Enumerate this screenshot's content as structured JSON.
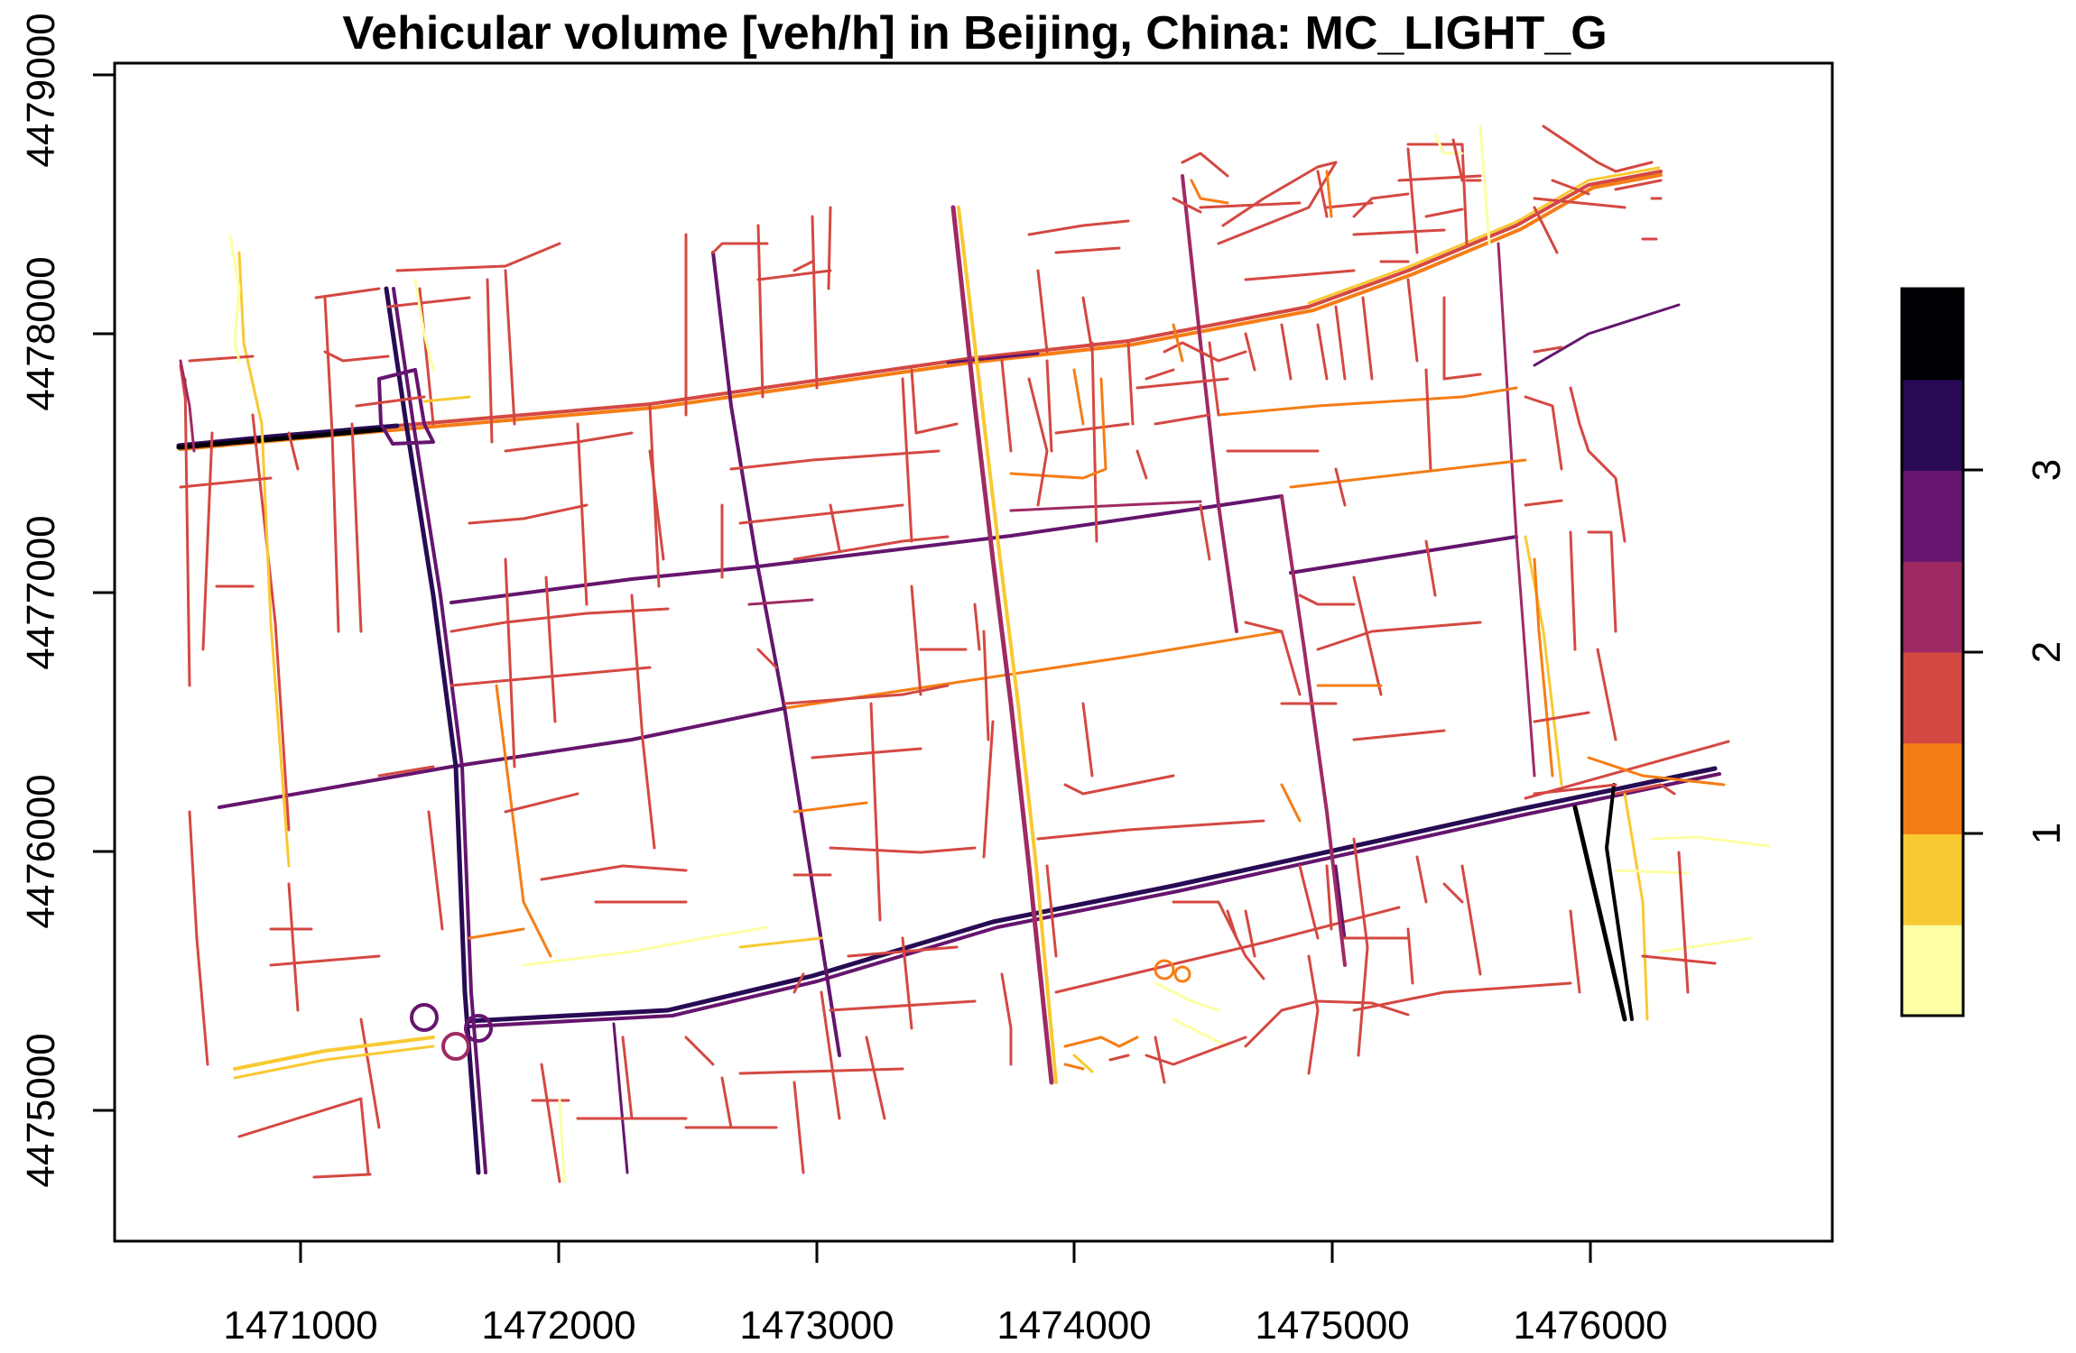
{
  "title": "Vehicular volume [veh/h] in Beijing, China: MC_LIGHT_G",
  "x_ticks": [
    "1471000",
    "1472000",
    "1473000",
    "1474000",
    "1475000",
    "1476000"
  ],
  "y_ticks": [
    "4475000",
    "4476000",
    "4477000",
    "4478000",
    "4479000"
  ],
  "legend_ticks": [
    "1",
    "2",
    "3"
  ],
  "colors": {
    "c1": "#FCFFA4",
    "c2": "#F8C932",
    "c3": "#F57D15",
    "c4": "#D44842",
    "c5": "#9F2A63",
    "c6": "#65156E",
    "c7": "#280B54",
    "c8": "#000004"
  },
  "legend_colors": [
    "#FCFFA4",
    "#F8C932",
    "#F57D15",
    "#D44842",
    "#9F2A63",
    "#65156E",
    "#280B54",
    "#000004"
  ]
}
